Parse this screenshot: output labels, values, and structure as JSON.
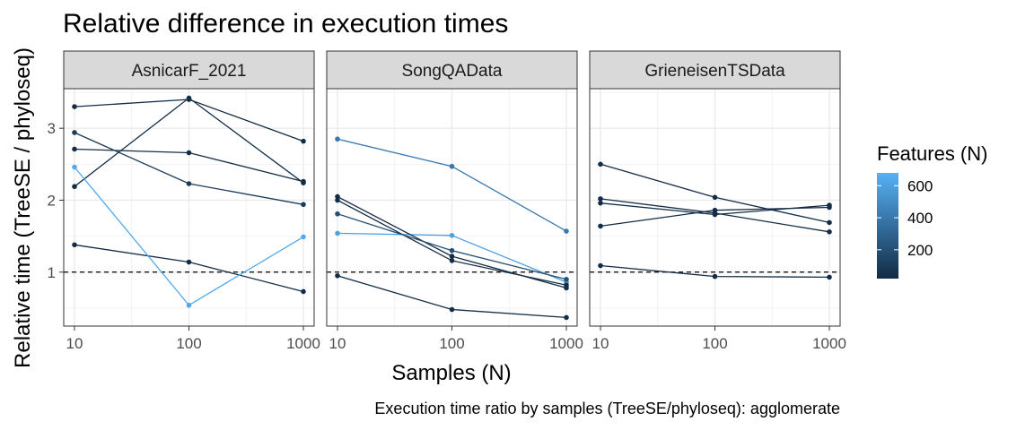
{
  "chart_data": {
    "type": "line",
    "title": "Relative difference in execution times",
    "xlabel": "Samples (N)",
    "ylabel": "Relative time (TreeSE / phyloseq)",
    "caption": "Execution time ratio by samples (TreeSE/phyloseq):  agglomerate",
    "x_scale": "log10",
    "x_ticks": [
      "10",
      "100",
      "1000"
    ],
    "x_tick_values": [
      10,
      100,
      1000
    ],
    "xlim": [
      10,
      1000
    ],
    "y_ticks": [
      "1",
      "2",
      "3"
    ],
    "y_tick_values": [
      1,
      2,
      3
    ],
    "ylim": [
      0.25,
      3.55
    ],
    "reference_line": {
      "y": 1,
      "style": "dashed"
    },
    "grid": true,
    "legend": {
      "title": "Features (N)",
      "position": "right",
      "type": "colorbar",
      "ticks": [
        "200",
        "400",
        "600"
      ],
      "tick_values": [
        200,
        400,
        600
      ],
      "range": [
        20,
        680
      ],
      "color_low": "#132B43",
      "color_high": "#56B1F7"
    },
    "panels": [
      {
        "label": "AsnicarF_2021",
        "series": [
          {
            "features": 30,
            "x": [
              10,
              100,
              1000
            ],
            "y": [
              3.3,
              3.4,
              2.82
            ]
          },
          {
            "features": 40,
            "x": [
              10,
              100,
              1000
            ],
            "y": [
              2.19,
              3.42,
              2.24
            ]
          },
          {
            "features": 30,
            "x": [
              10,
              100,
              1000
            ],
            "y": [
              2.71,
              2.66,
              2.26
            ]
          },
          {
            "features": 100,
            "x": [
              10,
              100,
              1000
            ],
            "y": [
              2.94,
              2.23,
              1.94
            ]
          },
          {
            "features": 30,
            "x": [
              10,
              100,
              1000
            ],
            "y": [
              1.38,
              1.14,
              0.73
            ]
          },
          {
            "features": 640,
            "x": [
              10,
              100,
              1000
            ],
            "y": [
              2.46,
              0.54,
              1.49
            ]
          }
        ]
      },
      {
        "label": "SongQAData",
        "series": [
          {
            "features": 400,
            "x": [
              10,
              100,
              1000
            ],
            "y": [
              2.85,
              2.47,
              1.57
            ]
          },
          {
            "features": 600,
            "x": [
              10,
              100,
              1000
            ],
            "y": [
              1.54,
              1.51,
              0.86
            ]
          },
          {
            "features": 30,
            "x": [
              10,
              100,
              1000
            ],
            "y": [
              2.05,
              1.22,
              0.78
            ]
          },
          {
            "features": 30,
            "x": [
              10,
              100,
              1000
            ],
            "y": [
              2.0,
              1.16,
              0.82
            ]
          },
          {
            "features": 200,
            "x": [
              10,
              100,
              1000
            ],
            "y": [
              1.81,
              1.3,
              0.9
            ]
          },
          {
            "features": 30,
            "x": [
              10,
              100,
              1000
            ],
            "y": [
              0.95,
              0.48,
              0.37
            ]
          }
        ]
      },
      {
        "label": "GrieneisenTSData",
        "series": [
          {
            "features": 30,
            "x": [
              10,
              100,
              1000
            ],
            "y": [
              2.5,
              2.04,
              1.69
            ]
          },
          {
            "features": 30,
            "x": [
              10,
              100,
              1000
            ],
            "y": [
              2.02,
              1.82,
              1.56
            ]
          },
          {
            "features": 30,
            "x": [
              10,
              100,
              1000
            ],
            "y": [
              1.96,
              1.8,
              1.93
            ]
          },
          {
            "features": 30,
            "x": [
              10,
              100,
              1000
            ],
            "y": [
              1.64,
              1.86,
              1.9
            ]
          },
          {
            "features": 30,
            "x": [
              10,
              100,
              1000
            ],
            "y": [
              1.09,
              0.94,
              0.93
            ]
          }
        ]
      }
    ]
  }
}
